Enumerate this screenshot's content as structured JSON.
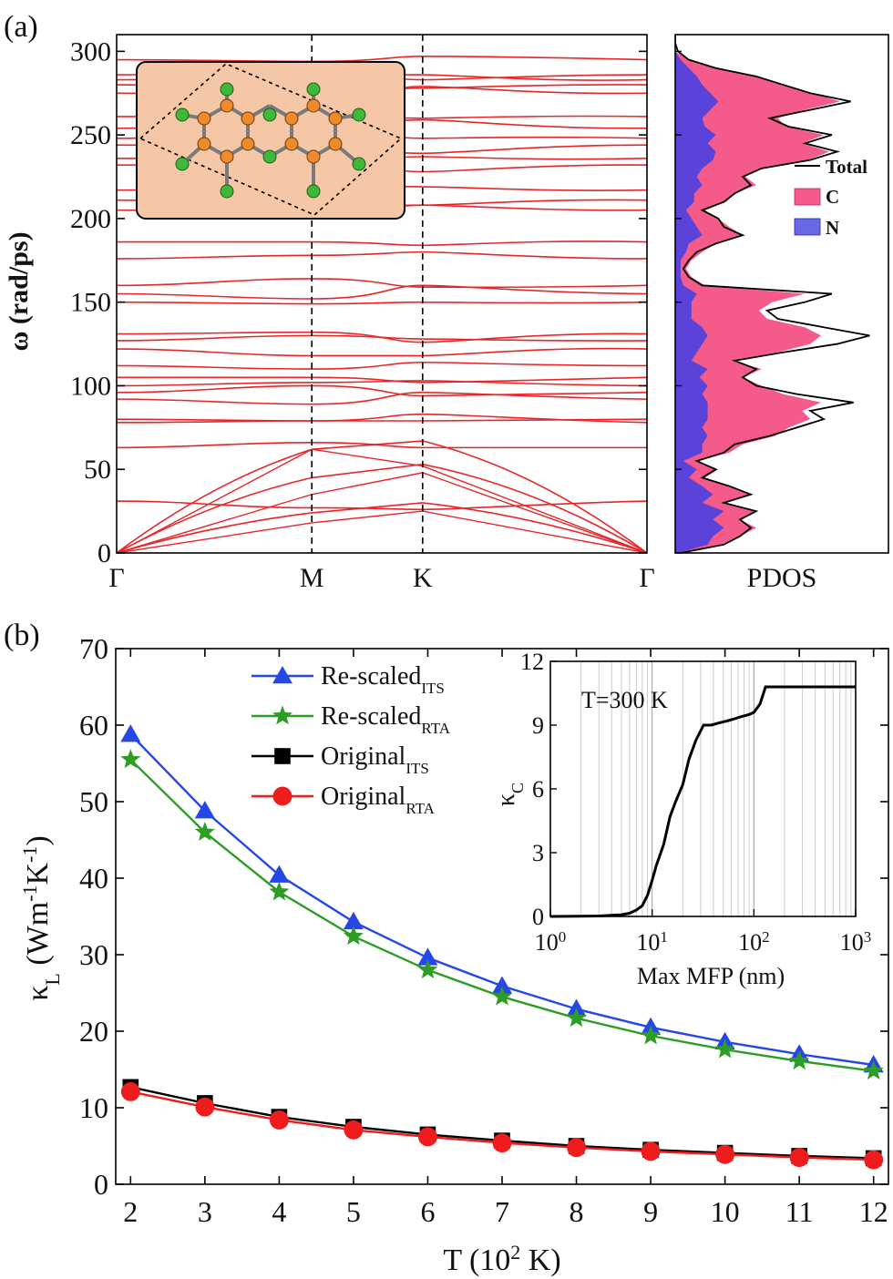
{
  "colors": {
    "band": "#e8262a",
    "pdos_c": "#f45b8b",
    "pdos_n": "#4a3fe0",
    "pdos_total": "#000000",
    "inset_bg": "#f6c7a7",
    "carbon": "#f08a2c",
    "nitrogen": "#3fb83a",
    "line_rescaled_its": "#2447e6",
    "line_rescaled_rta": "#2e9d25",
    "line_original_its": "#000000",
    "line_original_rta": "#ee1c1c"
  },
  "chart_data": [
    {
      "id": "a",
      "panel_label": "(a)",
      "type": "line",
      "title": "",
      "ylabel": "ω (rad/ps)",
      "ylim": [
        0,
        310
      ],
      "yticks": [
        0,
        50,
        100,
        150,
        200,
        250,
        300
      ],
      "x_kpoints": [
        "Γ",
        "M",
        "K",
        "Γ"
      ],
      "x_kpoint_positions": [
        0,
        0.368,
        0.577,
        1.0
      ],
      "flat_band_frequencies": [
        31,
        63,
        78,
        80,
        92,
        96,
        100,
        105,
        112,
        122,
        127,
        131,
        150,
        155,
        160,
        176,
        186,
        205,
        211,
        217,
        232,
        236,
        244,
        248,
        254,
        261,
        275,
        280,
        283,
        286,
        295
      ],
      "acoustic_branches": [
        {
          "name": "TA",
          "values": [
            0,
            45,
            53,
            0
          ]
        },
        {
          "name": "LA",
          "values": [
            0,
            62,
            67,
            0
          ]
        },
        {
          "name": "ZA",
          "values": [
            0,
            24,
            30,
            0
          ]
        }
      ],
      "inset": {
        "label": "C3N lattice (C orange, N green)"
      }
    },
    {
      "id": "pdos",
      "type": "area",
      "xlabel": "PDOS",
      "ylim": [
        0,
        310
      ],
      "legend": [
        "Total",
        "C",
        "N"
      ],
      "legend_position": "right",
      "freq": [
        0,
        5,
        10,
        15,
        20,
        25,
        30,
        35,
        40,
        45,
        50,
        55,
        60,
        65,
        70,
        75,
        80,
        85,
        90,
        95,
        100,
        105,
        110,
        115,
        120,
        125,
        130,
        135,
        140,
        145,
        150,
        155,
        160,
        165,
        170,
        175,
        180,
        185,
        190,
        195,
        200,
        205,
        210,
        215,
        220,
        225,
        230,
        235,
        240,
        245,
        250,
        255,
        260,
        265,
        270,
        275,
        280,
        285,
        290,
        295,
        300,
        305,
        310
      ],
      "total": [
        0.02,
        0.18,
        0.24,
        0.28,
        0.24,
        0.3,
        0.18,
        0.28,
        0.2,
        0.1,
        0.15,
        0.08,
        0.18,
        0.22,
        0.35,
        0.45,
        0.55,
        0.5,
        0.66,
        0.45,
        0.3,
        0.25,
        0.3,
        0.22,
        0.4,
        0.6,
        0.72,
        0.55,
        0.38,
        0.34,
        0.48,
        0.58,
        0.1,
        0.05,
        0.03,
        0.05,
        0.08,
        0.15,
        0.25,
        0.18,
        0.16,
        0.1,
        0.18,
        0.22,
        0.28,
        0.25,
        0.32,
        0.5,
        0.6,
        0.48,
        0.58,
        0.42,
        0.35,
        0.5,
        0.65,
        0.5,
        0.4,
        0.3,
        0.15,
        0.05,
        0.01,
        0.0,
        0.0
      ],
      "C": [
        0.01,
        0.05,
        0.1,
        0.12,
        0.1,
        0.12,
        0.08,
        0.14,
        0.1,
        0.06,
        0.08,
        0.05,
        0.1,
        0.15,
        0.25,
        0.32,
        0.38,
        0.35,
        0.42,
        0.3,
        0.2,
        0.16,
        0.2,
        0.15,
        0.3,
        0.4,
        0.42,
        0.38,
        0.28,
        0.25,
        0.3,
        0.4,
        0.08,
        0.04,
        0.02,
        0.04,
        0.06,
        0.1,
        0.15,
        0.12,
        0.1,
        0.07,
        0.12,
        0.15,
        0.2,
        0.18,
        0.22,
        0.35,
        0.42,
        0.35,
        0.4,
        0.3,
        0.28,
        0.35,
        0.45,
        0.38,
        0.3,
        0.22,
        0.1,
        0.03,
        0.0,
        0.0,
        0.0
      ],
      "N": [
        0.01,
        0.12,
        0.14,
        0.18,
        0.14,
        0.18,
        0.1,
        0.14,
        0.1,
        0.05,
        0.08,
        0.03,
        0.1,
        0.1,
        0.12,
        0.1,
        0.12,
        0.12,
        0.12,
        0.1,
        0.12,
        0.09,
        0.12,
        0.06,
        0.08,
        0.1,
        0.12,
        0.1,
        0.06,
        0.06,
        0.06,
        0.08,
        0.03,
        0.02,
        0.02,
        0.02,
        0.04,
        0.05,
        0.1,
        0.08,
        0.06,
        0.04,
        0.07,
        0.07,
        0.1,
        0.08,
        0.1,
        0.14,
        0.15,
        0.12,
        0.15,
        0.11,
        0.1,
        0.13,
        0.16,
        0.13,
        0.1,
        0.08,
        0.05,
        0.02,
        0.0,
        0.0,
        0.0
      ]
    },
    {
      "id": "b",
      "panel_label": "(b)",
      "type": "line",
      "xlabel_main": "T (10",
      "xlabel_sup": "2",
      "xlabel_tail": " K)",
      "ylabel_kappa": "κ",
      "ylabel_sub": "L",
      "ylabel_units_1": " (Wm",
      "ylabel_sup_1": "-1",
      "ylabel_units_2": "K",
      "ylabel_sup_2": "-1",
      "ylabel_units_3": ")",
      "xlim": [
        1.8,
        12.2
      ],
      "ylim": [
        0,
        70
      ],
      "xticks": [
        2,
        3,
        4,
        5,
        6,
        7,
        8,
        9,
        10,
        11,
        12
      ],
      "yticks": [
        0,
        10,
        20,
        30,
        40,
        50,
        60,
        70
      ],
      "legend_position": "top-left",
      "x": [
        2,
        3,
        4,
        5,
        6,
        7,
        8,
        9,
        10,
        11,
        12
      ],
      "series": [
        {
          "name": "Re-scaled",
          "sub": "ITS",
          "marker": "triangle",
          "color": "#2447e6",
          "values": [
            58.8,
            48.8,
            40.4,
            34.3,
            29.6,
            25.9,
            22.9,
            20.5,
            18.6,
            17.0,
            15.6
          ]
        },
        {
          "name": "Re-scaled",
          "sub": "RTA",
          "marker": "star",
          "color": "#2e9d25",
          "values": [
            55.5,
            46.0,
            38.2,
            32.4,
            28.0,
            24.5,
            21.7,
            19.4,
            17.6,
            16.1,
            14.8
          ]
        },
        {
          "name": "Original",
          "sub": "ITS",
          "marker": "square",
          "color": "#000000",
          "values": [
            12.7,
            10.6,
            8.8,
            7.5,
            6.5,
            5.7,
            5.0,
            4.5,
            4.1,
            3.7,
            3.4
          ]
        },
        {
          "name": "Original",
          "sub": "RTA",
          "marker": "circle",
          "color": "#ee1c1c",
          "values": [
            12.1,
            10.1,
            8.4,
            7.1,
            6.2,
            5.4,
            4.8,
            4.3,
            3.9,
            3.5,
            3.2
          ]
        }
      ]
    },
    {
      "id": "b-inset",
      "type": "line",
      "annotation": "T=300 K",
      "xlabel": "Max MFP (nm)",
      "ylabel_kappa": "κ",
      "ylabel_sub": "C",
      "xscale": "log",
      "xlim": [
        1,
        1000
      ],
      "ylim": [
        0,
        12
      ],
      "yticks": [
        0,
        3,
        6,
        9,
        12
      ],
      "xticks_base": "10",
      "xticks_exp": [
        "0",
        "1",
        "2",
        "3"
      ],
      "x": [
        1,
        3,
        5,
        6,
        7,
        8,
        9,
        10,
        11,
        13,
        15,
        17,
        20,
        23,
        27,
        32,
        38,
        45,
        55,
        65,
        75,
        90,
        100,
        115,
        130,
        150,
        200,
        400,
        1000
      ],
      "values": [
        0,
        0.02,
        0.08,
        0.15,
        0.3,
        0.5,
        1.0,
        1.7,
        2.4,
        3.4,
        4.7,
        5.4,
        6.2,
        7.4,
        8.3,
        9.0,
        9.0,
        9.1,
        9.2,
        9.3,
        9.4,
        9.5,
        9.6,
        10.0,
        10.8,
        10.8,
        10.8,
        10.8,
        10.8
      ]
    }
  ]
}
